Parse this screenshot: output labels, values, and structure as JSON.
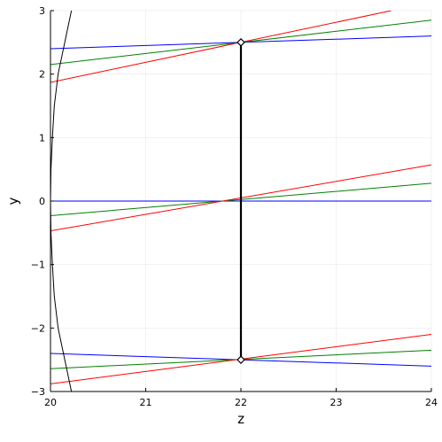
{
  "chart_data": {
    "type": "line",
    "xlabel": "z",
    "ylabel": "y",
    "xlim": [
      20,
      24
    ],
    "ylim": [
      -3,
      3
    ],
    "grid": true,
    "legend": "none",
    "xticks": [
      20,
      21,
      22,
      23,
      24
    ],
    "xtick_labels": [
      "20",
      "21",
      "22",
      "23",
      "24"
    ],
    "yticks": [
      -3,
      -2,
      -1,
      0,
      1,
      2,
      3
    ],
    "ytick_labels": [
      "−3",
      "−2",
      "−1",
      "0",
      "1",
      "2",
      "3"
    ],
    "colors": {
      "blue": "#0000ff",
      "green": "#008000",
      "red": "#ff0000",
      "black": "#000000"
    },
    "series": [
      {
        "color": "#0000ff",
        "x": [
          20,
          24
        ],
        "y": [
          2.4,
          2.6
        ]
      },
      {
        "color": "#008000",
        "x": [
          20,
          24
        ],
        "y": [
          2.15,
          2.85
        ]
      },
      {
        "color": "#ff0000",
        "x": [
          20,
          23.58
        ],
        "y": [
          1.87,
          3.0
        ]
      },
      {
        "color": "#0000ff",
        "x": [
          20,
          24
        ],
        "y": [
          0.0,
          0.0
        ]
      },
      {
        "color": "#008000",
        "x": [
          20,
          24
        ],
        "y": [
          -0.23,
          0.28
        ]
      },
      {
        "color": "#ff0000",
        "x": [
          20,
          24
        ],
        "y": [
          -0.47,
          0.57
        ]
      },
      {
        "color": "#0000ff",
        "x": [
          20,
          24
        ],
        "y": [
          -2.4,
          -2.6
        ]
      },
      {
        "color": "#008000",
        "x": [
          20,
          24
        ],
        "y": [
          -2.64,
          -2.35
        ]
      },
      {
        "color": "#ff0000",
        "x": [
          20,
          24
        ],
        "y": [
          -2.88,
          -2.1
        ]
      },
      {
        "color": "#000000",
        "width": 2.2,
        "x": [
          22,
          22
        ],
        "y": [
          -2.5,
          2.5
        ]
      },
      {
        "color": "#000000",
        "x": [
          20.22,
          20.15,
          20.08,
          20.04,
          20.02,
          20.005,
          20.0,
          20.005,
          20.02,
          20.04,
          20.08,
          20.15,
          20.22
        ],
        "y": [
          -3.0,
          -2.5,
          -2.0,
          -1.5,
          -1.0,
          -0.5,
          0.0,
          0.5,
          1.0,
          1.5,
          2.0,
          2.5,
          3.0
        ]
      }
    ],
    "markers": [
      {
        "x": 22,
        "y": 2.5
      },
      {
        "x": 22,
        "y": -2.5
      }
    ]
  }
}
